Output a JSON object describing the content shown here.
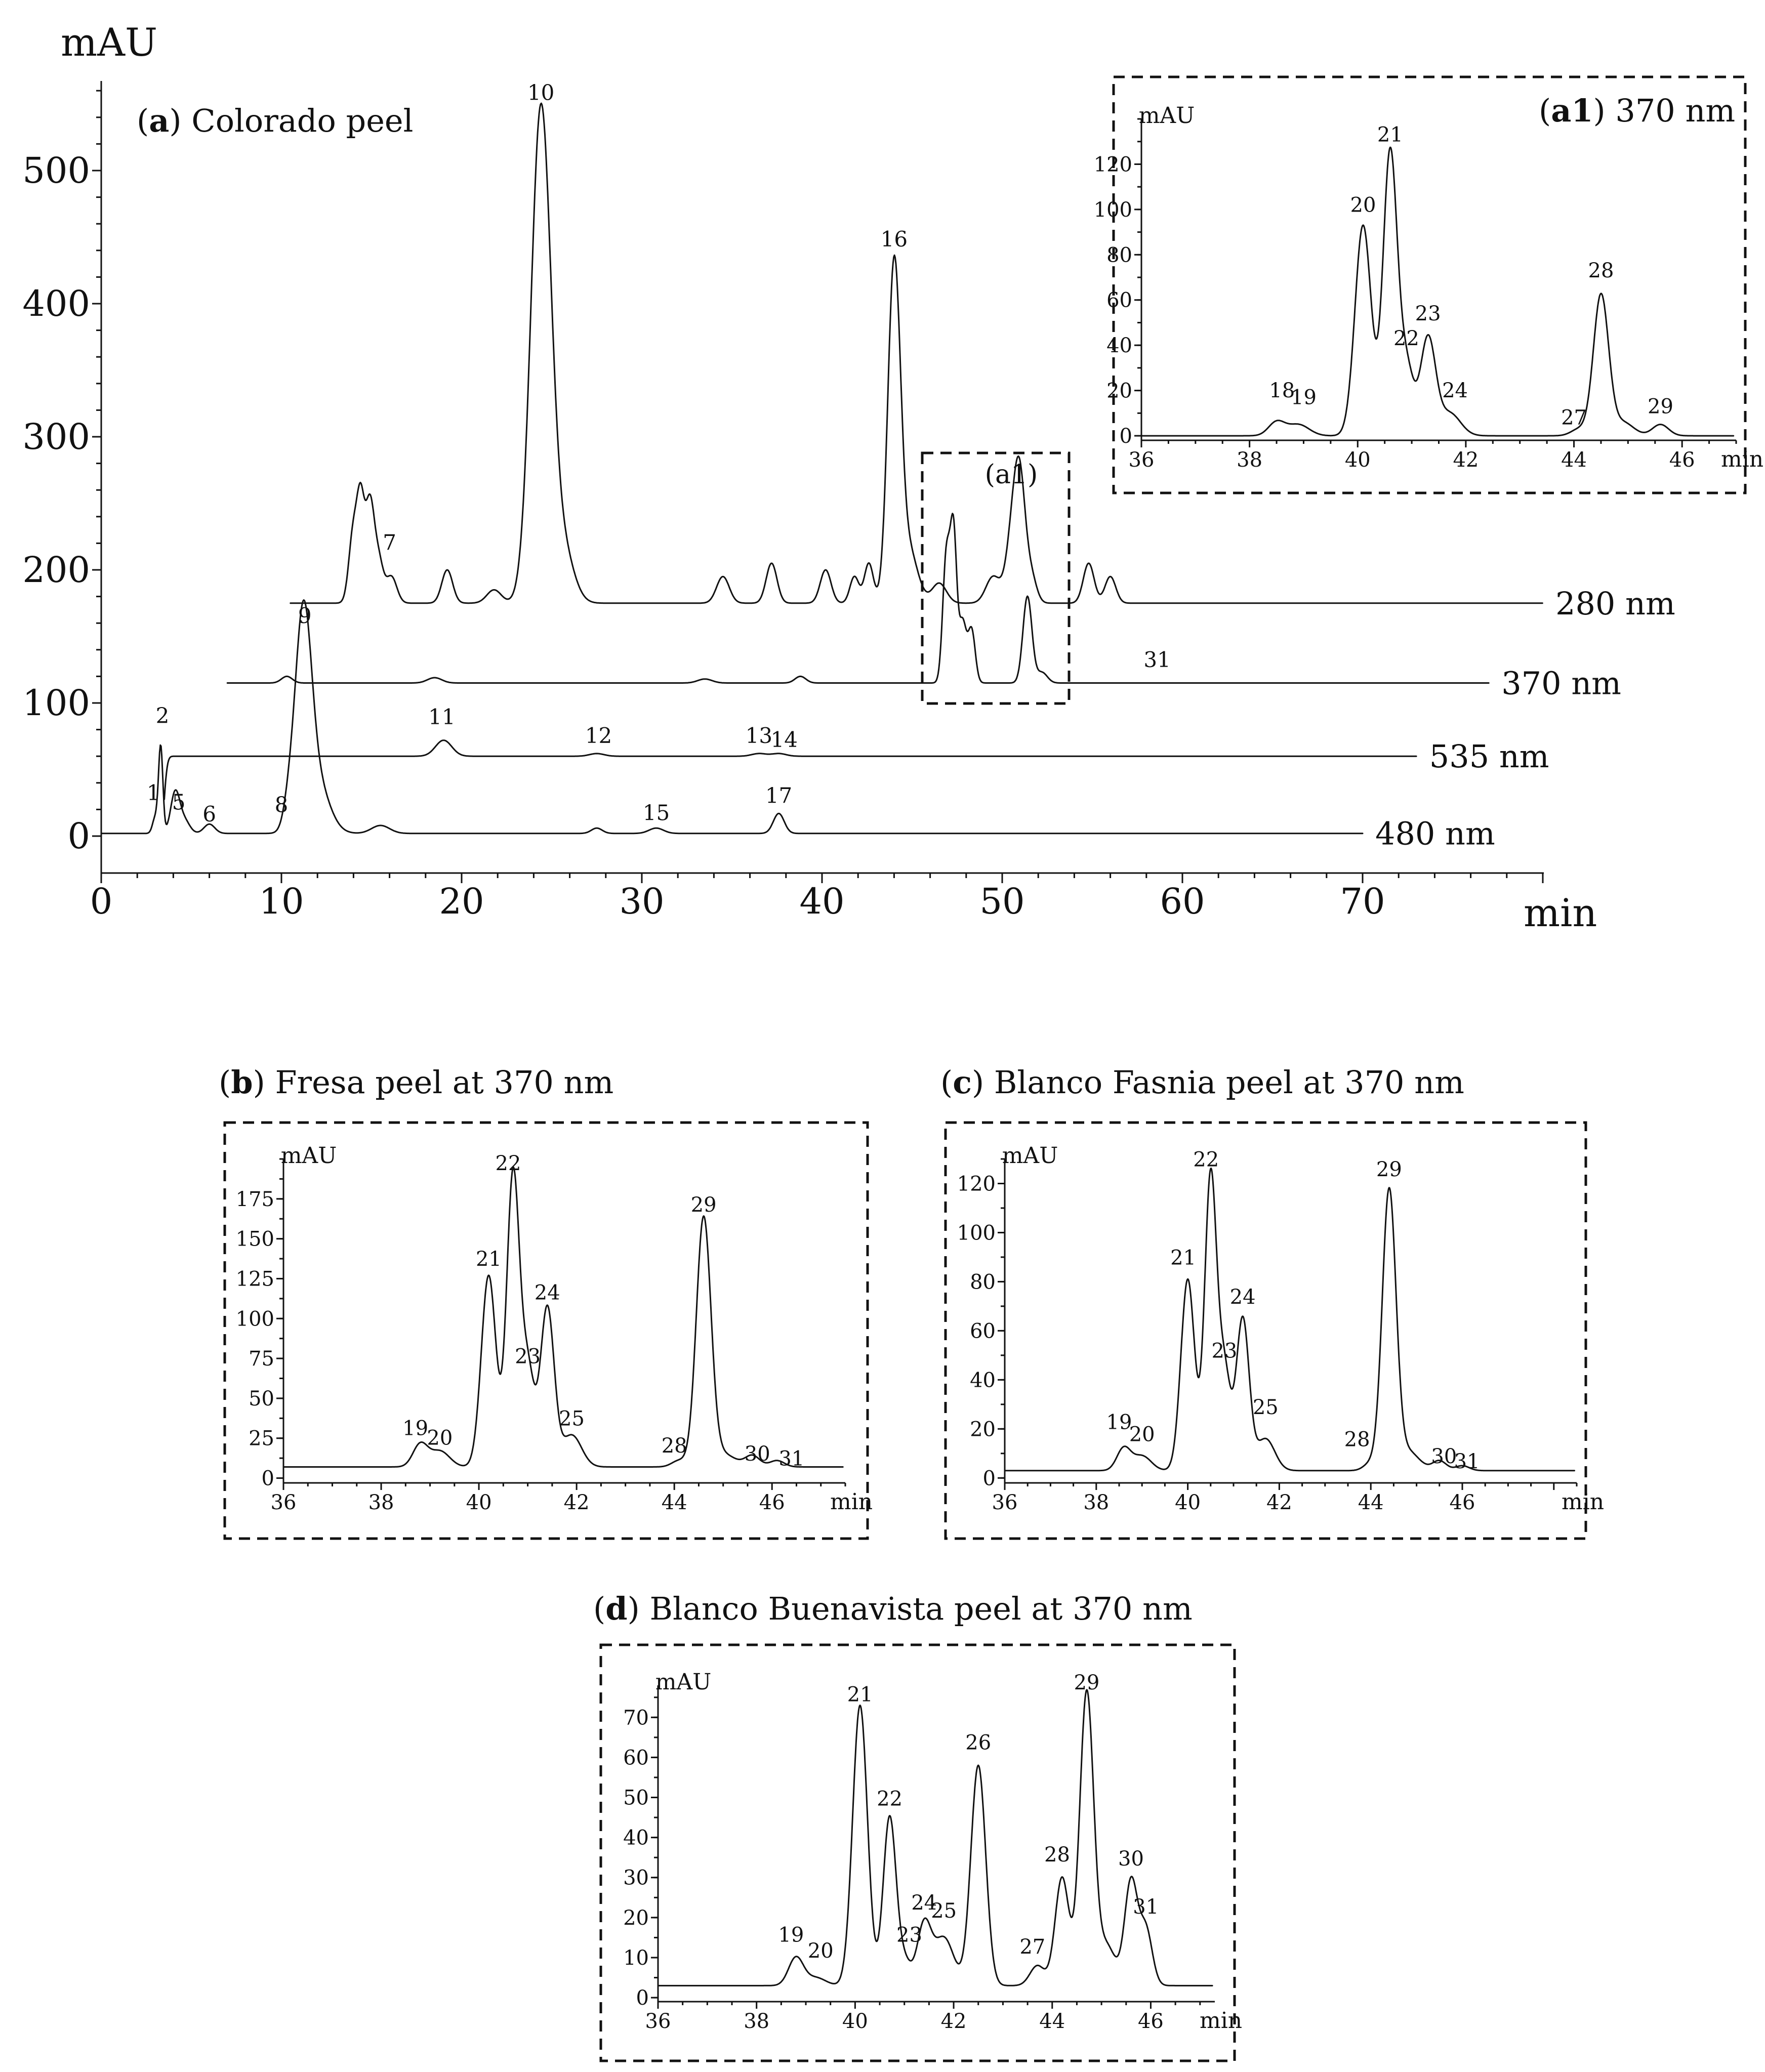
{
  "chart_data": [
    {
      "panel": "a",
      "type": "line",
      "title": {
        "letter": "a",
        "text": "Colorado peel"
      },
      "ylabel": "mAU",
      "xlabel": "min",
      "xlim": [
        0,
        80
      ],
      "ylim": [
        -30,
        560
      ],
      "x_ticks": [
        0,
        10,
        20,
        30,
        40,
        50,
        60,
        70
      ],
      "y_ticks": [
        0,
        100,
        200,
        300,
        400,
        500
      ],
      "inset_marker": "(a1)",
      "series": [
        {
          "name": "280 nm",
          "x_start": 10.5,
          "x_end": 80,
          "baseline": 175,
          "peaks": [
            [
              14.0,
              55,
              0.25
            ],
            [
              14.4,
              65,
              0.2
            ],
            [
              14.9,
              75,
              0.25
            ],
            [
              15.4,
              30,
              0.25
            ],
            [
              16.1,
              20,
              0.3
            ],
            [
              19.2,
              25,
              0.3
            ],
            [
              21.8,
              10,
              0.4
            ],
            [
              24.4,
              370,
              0.55
            ],
            [
              25.6,
              40,
              0.6
            ],
            [
              34.5,
              20,
              0.35
            ],
            [
              37.2,
              30,
              0.3
            ],
            [
              40.2,
              25,
              0.3
            ],
            [
              41.8,
              20,
              0.25
            ],
            [
              42.6,
              30,
              0.25
            ],
            [
              44.0,
              250,
              0.35
            ],
            [
              44.8,
              40,
              0.5
            ],
            [
              46.5,
              15,
              0.4
            ],
            [
              49.5,
              20,
              0.4
            ],
            [
              50.6,
              55,
              0.35
            ],
            [
              51.0,
              75,
              0.3
            ],
            [
              51.6,
              20,
              0.3
            ],
            [
              54.8,
              30,
              0.3
            ],
            [
              56.0,
              20,
              0.3
            ]
          ],
          "labels": [
            {
              "text": "7",
              "x": 16.0,
              "y": 215
            },
            {
              "text": "10",
              "x": 24.4,
              "y": 553
            },
            {
              "text": "16",
              "x": 44.0,
              "y": 443
            }
          ]
        },
        {
          "name": "370 nm",
          "x_start": 7,
          "x_end": 77,
          "baseline": 115,
          "peaks": [
            [
              10.3,
              5,
              0.3
            ],
            [
              18.5,
              4,
              0.4
            ],
            [
              33.5,
              3,
              0.4
            ],
            [
              38.8,
              5,
              0.3
            ],
            [
              46.9,
              95,
              0.2
            ],
            [
              47.3,
              110,
              0.18
            ],
            [
              47.8,
              45,
              0.2
            ],
            [
              48.3,
              40,
              0.2
            ],
            [
              51.4,
              65,
              0.25
            ],
            [
              52.2,
              8,
              0.3
            ]
          ],
          "labels": [
            {
              "text": "31",
              "x": 58.6,
              "y": 127
            }
          ]
        },
        {
          "name": "535 nm",
          "x_start": 3.5,
          "x_end": 73,
          "baseline": 60,
          "peaks": [
            [
              3.3,
              -60,
              0.18
            ],
            [
              19.0,
              12,
              0.45
            ],
            [
              27.5,
              2,
              0.4
            ],
            [
              36.5,
              2,
              0.4
            ],
            [
              37.6,
              2,
              0.4
            ]
          ],
          "labels": [
            {
              "text": "2",
              "x": 3.4,
              "y": 85
            },
            {
              "text": "11",
              "x": 18.9,
              "y": 84
            },
            {
              "text": "12",
              "x": 27.6,
              "y": 70
            },
            {
              "text": "13",
              "x": 36.5,
              "y": 70
            },
            {
              "text": "14",
              "x": 37.9,
              "y": 67
            }
          ]
        },
        {
          "name": "480 nm",
          "x_start": 0,
          "x_end": 70,
          "baseline": 2,
          "peaks": [
            [
              3.0,
              12,
              0.15
            ],
            [
              3.3,
              65,
              0.12
            ],
            [
              4.1,
              30,
              0.25
            ],
            [
              4.6,
              10,
              0.3
            ],
            [
              6.0,
              7,
              0.3
            ],
            [
              10.4,
              15,
              0.3
            ],
            [
              11.2,
              150,
              0.45
            ],
            [
              11.9,
              40,
              0.7
            ],
            [
              15.5,
              6,
              0.5
            ],
            [
              27.5,
              4,
              0.3
            ],
            [
              30.8,
              4,
              0.4
            ],
            [
              37.6,
              15,
              0.3
            ]
          ],
          "labels": [
            {
              "text": "1",
              "x": 2.9,
              "y": 27
            },
            {
              "text": "5",
              "x": 4.3,
              "y": 20
            },
            {
              "text": "6",
              "x": 6.0,
              "y": 11
            },
            {
              "text": "8",
              "x": 10.0,
              "y": 18
            },
            {
              "text": "9",
              "x": 11.3,
              "y": 160
            },
            {
              "text": "15",
              "x": 30.8,
              "y": 12
            },
            {
              "text": "17",
              "x": 37.6,
              "y": 25
            }
          ]
        }
      ]
    },
    {
      "panel": "a1",
      "type": "line",
      "title": {
        "letter": "a1",
        "text": "370 nm"
      },
      "ylabel": "mAU",
      "xlabel": "min",
      "xlim": [
        36,
        47
      ],
      "ylim": [
        -2,
        140
      ],
      "x_ticks": [
        36,
        38,
        40,
        42,
        44,
        46
      ],
      "y_ticks": [
        0,
        20,
        40,
        60,
        80,
        100,
        120
      ],
      "baseline": 0,
      "peaks": [
        [
          38.5,
          6,
          0.15
        ],
        [
          38.9,
          5,
          0.2
        ],
        [
          40.1,
          93,
          0.15
        ],
        [
          40.6,
          125,
          0.13
        ],
        [
          40.9,
          30,
          0.13
        ],
        [
          41.3,
          43,
          0.14
        ],
        [
          41.7,
          10,
          0.2
        ],
        [
          44.1,
          3,
          0.15
        ],
        [
          44.5,
          62,
          0.14
        ],
        [
          44.9,
          6,
          0.2
        ],
        [
          45.6,
          5,
          0.15
        ]
      ],
      "labels": [
        {
          "text": "18",
          "x": 38.6,
          "y": 17
        },
        {
          "text": "19",
          "x": 39.0,
          "y": 14
        },
        {
          "text": "20",
          "x": 40.1,
          "y": 99
        },
        {
          "text": "21",
          "x": 40.6,
          "y": 130
        },
        {
          "text": "22",
          "x": 40.9,
          "y": 40
        },
        {
          "text": "23",
          "x": 41.3,
          "y": 51
        },
        {
          "text": "24",
          "x": 41.8,
          "y": 17
        },
        {
          "text": "27",
          "x": 44.0,
          "y": 5
        },
        {
          "text": "28",
          "x": 44.5,
          "y": 70
        },
        {
          "text": "29",
          "x": 45.6,
          "y": 10
        }
      ]
    },
    {
      "panel": "b",
      "type": "line",
      "title": {
        "letter": "b",
        "text": "Fresa peel at 370 nm"
      },
      "ylabel": "mAU",
      "xlabel": "min",
      "xlim": [
        36,
        47.5
      ],
      "ylim": [
        -3,
        200
      ],
      "x_ticks": [
        36,
        38,
        40,
        42,
        44,
        46
      ],
      "y_ticks": [
        0,
        25,
        50,
        75,
        100,
        125,
        150,
        175
      ],
      "baseline": 7,
      "peaks": [
        [
          38.8,
          14,
          0.15
        ],
        [
          39.2,
          10,
          0.2
        ],
        [
          40.2,
          120,
          0.15
        ],
        [
          40.7,
          183,
          0.13
        ],
        [
          41.0,
          60,
          0.13
        ],
        [
          41.4,
          100,
          0.14
        ],
        [
          41.9,
          20,
          0.2
        ],
        [
          44.1,
          4,
          0.15
        ],
        [
          44.6,
          155,
          0.15
        ],
        [
          45.0,
          8,
          0.25
        ],
        [
          45.6,
          7,
          0.15
        ],
        [
          46.1,
          4,
          0.15
        ]
      ],
      "labels": [
        {
          "text": "19",
          "x": 38.7,
          "y": 27
        },
        {
          "text": "20",
          "x": 39.2,
          "y": 21
        },
        {
          "text": "21",
          "x": 40.2,
          "y": 133
        },
        {
          "text": "22",
          "x": 40.6,
          "y": 193
        },
        {
          "text": "23",
          "x": 41.0,
          "y": 72
        },
        {
          "text": "24",
          "x": 41.4,
          "y": 112
        },
        {
          "text": "25",
          "x": 41.9,
          "y": 33
        },
        {
          "text": "28",
          "x": 44.0,
          "y": 16
        },
        {
          "text": "29",
          "x": 44.6,
          "y": 167
        },
        {
          "text": "30",
          "x": 45.7,
          "y": 11
        },
        {
          "text": "31",
          "x": 46.4,
          "y": 8
        }
      ]
    },
    {
      "panel": "c",
      "type": "line",
      "title": {
        "letter": "c",
        "text": "Blanco Fasnia peel at 370 nm"
      },
      "ylabel": "mAU",
      "xlabel": "min",
      "xlim": [
        36,
        48.5
      ],
      "ylim": [
        -2,
        130
      ],
      "x_ticks": [
        36,
        38,
        40,
        42,
        44,
        46
      ],
      "y_ticks": [
        0,
        20,
        40,
        60,
        80,
        100,
        120
      ],
      "baseline": 3,
      "peaks": [
        [
          38.6,
          9,
          0.15
        ],
        [
          39.0,
          6,
          0.2
        ],
        [
          40.0,
          78,
          0.15
        ],
        [
          40.5,
          120,
          0.13
        ],
        [
          40.8,
          40,
          0.13
        ],
        [
          41.2,
          62,
          0.14
        ],
        [
          41.7,
          13,
          0.2
        ],
        [
          44.0,
          3,
          0.15
        ],
        [
          44.4,
          113,
          0.15
        ],
        [
          44.8,
          8,
          0.25
        ],
        [
          45.5,
          4,
          0.15
        ],
        [
          46.0,
          2,
          0.15
        ]
      ],
      "labels": [
        {
          "text": "19",
          "x": 38.5,
          "y": 20
        },
        {
          "text": "20",
          "x": 39.0,
          "y": 15
        },
        {
          "text": "21",
          "x": 39.9,
          "y": 87
        },
        {
          "text": "22",
          "x": 40.4,
          "y": 127
        },
        {
          "text": "23",
          "x": 40.8,
          "y": 49
        },
        {
          "text": "24",
          "x": 41.2,
          "y": 71
        },
        {
          "text": "25",
          "x": 41.7,
          "y": 26
        },
        {
          "text": "28",
          "x": 43.7,
          "y": 13
        },
        {
          "text": "29",
          "x": 44.4,
          "y": 123
        },
        {
          "text": "30",
          "x": 45.6,
          "y": 6
        },
        {
          "text": "31",
          "x": 46.1,
          "y": 4
        }
      ]
    },
    {
      "panel": "d",
      "type": "line",
      "title": {
        "letter": "d",
        "text": "Blanco Buenavista peel at 370 nm"
      },
      "ylabel": "mAU",
      "xlabel": "min",
      "xlim": [
        36,
        47.3
      ],
      "ylim": [
        -1,
        78
      ],
      "x_ticks": [
        36,
        38,
        40,
        42,
        44,
        46
      ],
      "y_ticks": [
        0,
        10,
        20,
        30,
        40,
        50,
        60,
        70
      ],
      "baseline": 3,
      "peaks": [
        [
          38.8,
          7,
          0.15
        ],
        [
          39.2,
          2,
          0.2
        ],
        [
          40.1,
          70,
          0.15
        ],
        [
          40.7,
          42,
          0.13
        ],
        [
          41.0,
          6,
          0.13
        ],
        [
          41.4,
          15,
          0.14
        ],
        [
          41.8,
          12,
          0.2
        ],
        [
          42.5,
          55,
          0.15
        ],
        [
          43.7,
          5,
          0.15
        ],
        [
          44.2,
          27,
          0.14
        ],
        [
          44.7,
          73,
          0.14
        ],
        [
          45.1,
          10,
          0.18
        ],
        [
          45.6,
          26,
          0.13
        ],
        [
          45.9,
          14,
          0.13
        ]
      ],
      "labels": [
        {
          "text": "19",
          "x": 38.7,
          "y": 14
        },
        {
          "text": "20",
          "x": 39.3,
          "y": 10
        },
        {
          "text": "21",
          "x": 40.1,
          "y": 74
        },
        {
          "text": "22",
          "x": 40.7,
          "y": 48
        },
        {
          "text": "23",
          "x": 41.1,
          "y": 14
        },
        {
          "text": "24",
          "x": 41.4,
          "y": 22
        },
        {
          "text": "25",
          "x": 41.8,
          "y": 20
        },
        {
          "text": "26",
          "x": 42.5,
          "y": 62
        },
        {
          "text": "27",
          "x": 43.6,
          "y": 11
        },
        {
          "text": "28",
          "x": 44.1,
          "y": 34
        },
        {
          "text": "29",
          "x": 44.7,
          "y": 77
        },
        {
          "text": "30",
          "x": 45.6,
          "y": 33
        },
        {
          "text": "31",
          "x": 45.9,
          "y": 21
        }
      ]
    }
  ]
}
